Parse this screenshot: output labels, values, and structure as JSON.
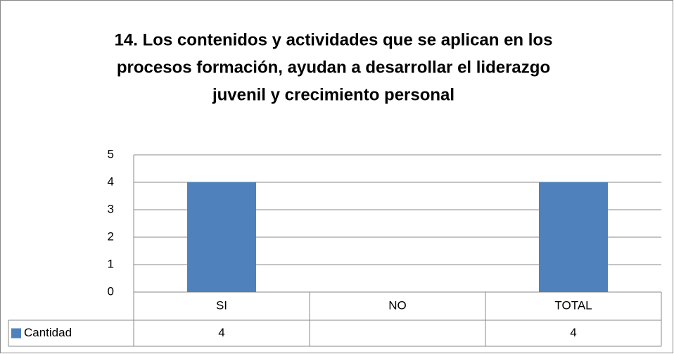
{
  "chart_data": {
    "type": "bar",
    "title": [
      "14. Los contenidos y actividades que se aplican en los",
      "procesos formación, ayudan a desarrollar el liderazgo",
      "juvenil y crecimiento personal"
    ],
    "categories": [
      "SI",
      "NO",
      "TOTAL"
    ],
    "series": [
      {
        "name": "Cantidad",
        "color": "#4f81bd",
        "values": [
          4,
          null,
          4
        ]
      }
    ],
    "ylim": [
      0,
      5
    ],
    "yticks": [
      0,
      1,
      2,
      3,
      4,
      5
    ],
    "grid": true,
    "data_table": true
  }
}
